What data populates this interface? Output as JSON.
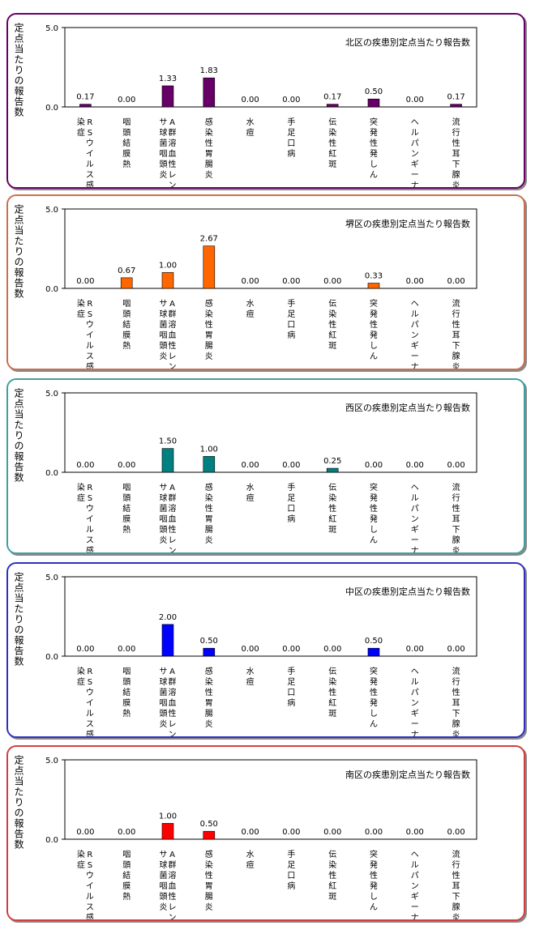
{
  "chart_data": [
    {
      "type": "bar",
      "title": "北区の疾患別定点当たり報告数",
      "ylabel": "定点当たりの報告数",
      "ylim": [
        0,
        5
      ],
      "yticks": [
        "0.0",
        "5.0"
      ],
      "color": "#660066",
      "border": "#660066",
      "categories": [
        "RSウイルス感染症",
        "咽頭結膜熱",
        "A群溶血性レンサ球菌咽頭炎",
        "感染性胃腸炎",
        "水痘",
        "手足口病",
        "伝染性紅斑",
        "突発性発しん",
        "ヘルパンギーナ",
        "流行性耳下腺炎"
      ],
      "values": [
        0.17,
        0.0,
        1.33,
        1.83,
        0.0,
        0.0,
        0.17,
        0.5,
        0.0,
        0.17
      ],
      "labels": [
        "0.17",
        "0.00",
        "1.33",
        "1.83",
        "0.00",
        "0.00",
        "0.17",
        "0.50",
        "0.00",
        "0.17"
      ]
    },
    {
      "type": "bar",
      "title": "堺区の疾患別定点当たり報告数",
      "ylabel": "定点当たりの報告数",
      "ylim": [
        0,
        5
      ],
      "yticks": [
        "0.0",
        "5.0"
      ],
      "color": "#ff6600",
      "border": "#c87050",
      "categories": [
        "RSウイルス感染症",
        "咽頭結膜熱",
        "A群溶血性レンサ球菌咽頭炎",
        "感染性胃腸炎",
        "水痘",
        "手足口病",
        "伝染性紅斑",
        "突発性発しん",
        "ヘルパンギーナ",
        "流行性耳下腺炎"
      ],
      "values": [
        0.0,
        0.67,
        1.0,
        2.67,
        0.0,
        0.0,
        0.0,
        0.33,
        0.0,
        0.0
      ],
      "labels": [
        "0.00",
        "0.67",
        "1.00",
        "2.67",
        "0.00",
        "0.00",
        "0.00",
        "0.33",
        "0.00",
        "0.00"
      ]
    },
    {
      "type": "bar",
      "title": "西区の疾患別定点当たり報告数",
      "ylabel": "定点当たりの報告数",
      "ylim": [
        0,
        5
      ],
      "yticks": [
        "0.0",
        "5.0"
      ],
      "color": "#008080",
      "border": "#40a0a0",
      "categories": [
        "RSウイルス感染症",
        "咽頭結膜熱",
        "A群溶血性レンサ球菌咽頭炎",
        "感染性胃腸炎",
        "水痘",
        "手足口病",
        "伝染性紅斑",
        "突発性発しん",
        "ヘルパンギーナ",
        "流行性耳下腺炎"
      ],
      "values": [
        0.0,
        0.0,
        1.5,
        1.0,
        0.0,
        0.0,
        0.25,
        0.0,
        0.0,
        0.0
      ],
      "labels": [
        "0.00",
        "0.00",
        "1.50",
        "1.00",
        "0.00",
        "0.00",
        "0.25",
        "0.00",
        "0.00",
        "0.00"
      ]
    },
    {
      "type": "bar",
      "title": "中区の疾患別定点当たり報告数",
      "ylabel": "定点当たりの報告数",
      "ylim": [
        0,
        5
      ],
      "yticks": [
        "0.0",
        "5.0"
      ],
      "color": "#0000ff",
      "border": "#3030c0",
      "categories": [
        "RSウイルス感染症",
        "咽頭結膜熱",
        "A群溶血性レンサ球菌咽頭炎",
        "感染性胃腸炎",
        "水痘",
        "手足口病",
        "伝染性紅斑",
        "突発性発しん",
        "ヘルパンギーナ",
        "流行性耳下腺炎"
      ],
      "values": [
        0.0,
        0.0,
        2.0,
        0.5,
        0.0,
        0.0,
        0.0,
        0.5,
        0.0,
        0.0
      ],
      "labels": [
        "0.00",
        "0.00",
        "2.00",
        "0.50",
        "0.00",
        "0.00",
        "0.00",
        "0.50",
        "0.00",
        "0.00"
      ]
    },
    {
      "type": "bar",
      "title": "南区の疾患別定点当たり報告数",
      "ylabel": "定点当たりの報告数",
      "ylim": [
        0,
        5
      ],
      "yticks": [
        "0.0",
        "5.0"
      ],
      "color": "#ff0000",
      "border": "#d04040",
      "categories": [
        "RSウイルス感染症",
        "咽頭結膜熱",
        "A群溶血性レンサ球菌咽頭炎",
        "感染性胃腸炎",
        "水痘",
        "手足口病",
        "伝染性紅斑",
        "突発性発しん",
        "ヘルパンギーナ",
        "流行性耳下腺炎"
      ],
      "values": [
        0.0,
        0.0,
        1.0,
        0.5,
        0.0,
        0.0,
        0.0,
        0.0,
        0.0,
        0.0
      ],
      "labels": [
        "0.00",
        "0.00",
        "1.00",
        "0.50",
        "0.00",
        "0.00",
        "0.00",
        "0.00",
        "0.00",
        "0.00"
      ]
    }
  ]
}
